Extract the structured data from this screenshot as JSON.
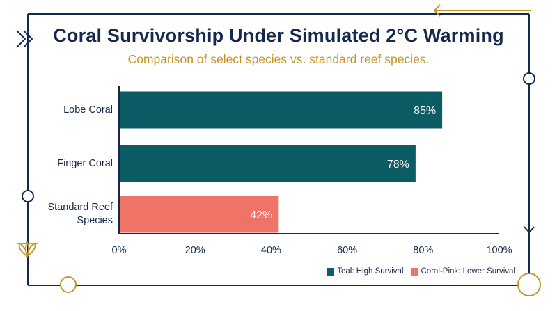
{
  "chart_data": {
    "type": "bar",
    "orientation": "horizontal",
    "title": "Coral Survivorship Under Simulated 2°C Warming",
    "subtitle": "Comparison of select species vs. standard reef species.",
    "categories": [
      "Lobe Coral",
      "Finger Coral",
      "Standard Reef\nSpecies"
    ],
    "values": [
      85,
      78,
      42
    ],
    "value_labels": [
      "85%",
      "78%",
      "42%"
    ],
    "bar_colors": [
      "#0c5c66",
      "#0c5c66",
      "#ef7366"
    ],
    "xlim": [
      0,
      100
    ],
    "x_ticks": [
      0,
      20,
      40,
      60,
      80,
      100
    ],
    "x_tick_labels": [
      "0%",
      "20%",
      "40%",
      "60%",
      "80%",
      "100%"
    ],
    "grid": false,
    "legend_position": "bottom-right",
    "legend": [
      {
        "label": "Teal: High Survival",
        "color": "#0c5c66"
      },
      {
        "label": "Coral-Pink: Lower Survival",
        "color": "#ef7366"
      }
    ]
  },
  "colors": {
    "frame": "#16294d",
    "accent_gold": "#c49428",
    "text": "#16294d"
  },
  "decor_icons": [
    "double-chevron-icon",
    "arrow-left-icon",
    "arrow-down-icon",
    "leaf-icon"
  ]
}
